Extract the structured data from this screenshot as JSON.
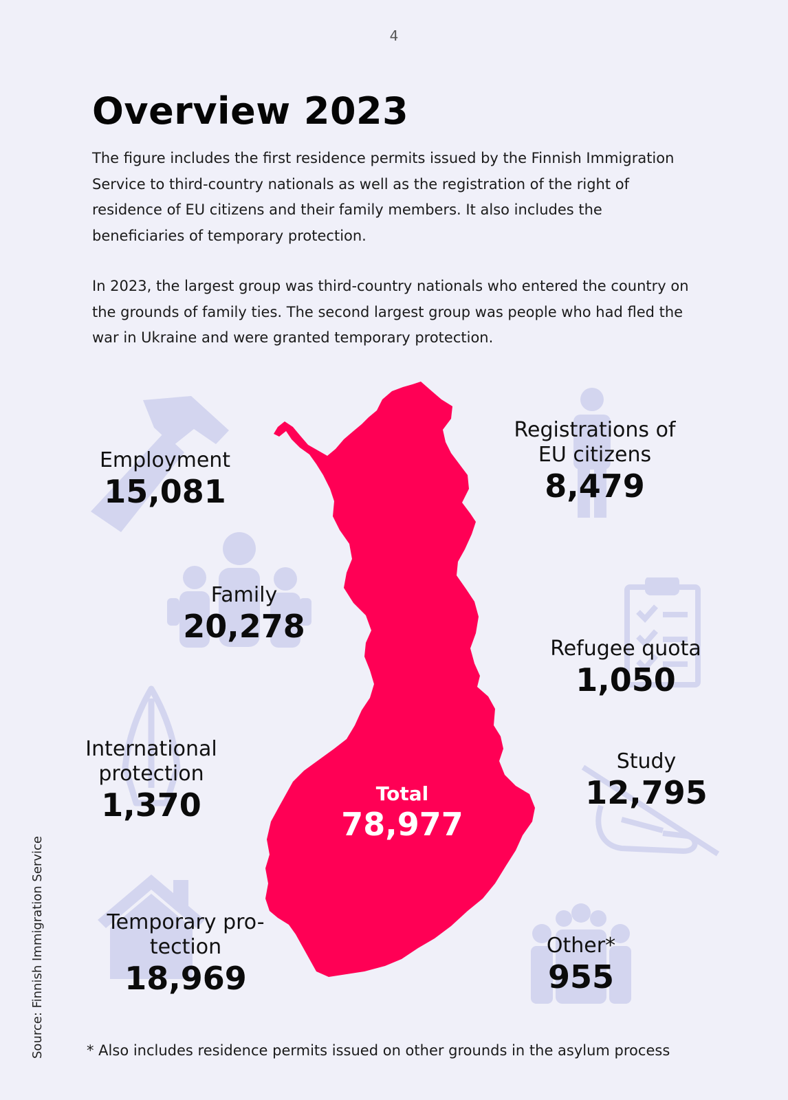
{
  "page_number": "4",
  "title": "Overview 2023",
  "intro": {
    "paragraph1": "The figure includes the first residence permits issued by the Finnish Immigration Service to third-country nationals as well as the registration of the right of residence of EU citizens and their family members. It also includes the beneficiaries of temporary protection.",
    "paragraph2": "In 2023, the largest group was third-country nationals who entered the country on the grounds of family ties. The second largest group was people who had fled the war in Ukraine and were granted temporary protection."
  },
  "categories": {
    "employment": {
      "label": "Employment",
      "value": "15,081",
      "icon": "hammer-icon"
    },
    "family": {
      "label": "Family",
      "value": "20,278",
      "icon": "family-icon"
    },
    "international_protection": {
      "label_line1": "International",
      "label_line2": "protection",
      "value": "1,370",
      "icon": "praying-hands-icon"
    },
    "temporary_protection": {
      "label_line1": "Temporary pro-",
      "label_line2": "tection",
      "value": "18,969",
      "icon": "house-icon"
    },
    "eu_registrations": {
      "label_line1": "Registrations of",
      "label_line2": "EU citizens",
      "value": "8,479",
      "icon": "person-icon"
    },
    "refugee_quota": {
      "label": "Refugee quota",
      "value": "1,050",
      "icon": "clipboard-icon"
    },
    "study": {
      "label": "Study",
      "value": "12,795",
      "icon": "writing-hand-icon"
    },
    "other": {
      "label": "Other*",
      "value": "955",
      "icon": "group-icon"
    }
  },
  "total": {
    "label": "Total",
    "value": "78,977"
  },
  "source": "Source: Finnish Immigration Service",
  "footnote": "* Also includes residence permits issued on other grounds in the asylum process",
  "colors": {
    "map": "#ff0055",
    "icons": "#d3d5ef",
    "background": "#f0f0f9"
  }
}
